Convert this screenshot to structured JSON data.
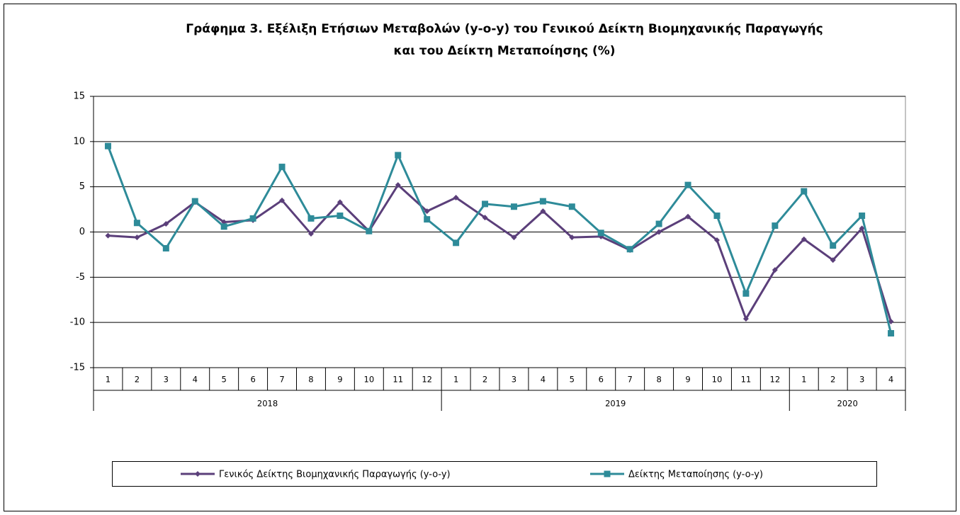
{
  "chart_data": {
    "type": "line",
    "title": [
      "Γράφημα 3. Εξέλιξη Ετήσιων Μεταβολών (y-o-y) του Γενικού Δείκτη Βιομηχανικής Παραγωγής",
      "και του Δείκτη Μεταποίησης (%)"
    ],
    "category_groups": [
      {
        "name": "2018",
        "categories": [
          "1",
          "2",
          "3",
          "4",
          "5",
          "6",
          "7",
          "8",
          "9",
          "10",
          "11",
          "12"
        ]
      },
      {
        "name": "2019",
        "categories": [
          "1",
          "2",
          "3",
          "4",
          "5",
          "6",
          "7",
          "8",
          "9",
          "10",
          "11",
          "12"
        ]
      },
      {
        "name": "2020",
        "categories": [
          "1",
          "2",
          "3",
          "4"
        ]
      }
    ],
    "series": [
      {
        "name": "Γενικός Δείκτης Βιομηχανικής Παραγωγής (y-o-y)",
        "color": "#5b3f7a",
        "marker": "diamond",
        "values": [
          -0.4,
          -0.6,
          0.9,
          3.3,
          1.1,
          1.3,
          3.5,
          -0.2,
          3.3,
          0.1,
          5.2,
          2.3,
          3.8,
          1.6,
          -0.6,
          2.3,
          -0.6,
          -0.5,
          -2.0,
          0.0,
          1.7,
          -0.9,
          -9.6,
          -4.2,
          -0.8,
          -3.1,
          0.4,
          -9.9
        ]
      },
      {
        "name": "Δείκτης Μεταποίησης (y-o-y)",
        "color": "#2e8b99",
        "marker": "square",
        "values": [
          9.5,
          1.0,
          -1.8,
          3.4,
          0.6,
          1.5,
          7.2,
          1.5,
          1.8,
          0.1,
          8.5,
          1.4,
          -1.2,
          3.1,
          2.8,
          3.4,
          2.8,
          -0.1,
          -1.9,
          0.9,
          5.2,
          1.8,
          -6.8,
          0.7,
          4.5,
          -1.5,
          1.8,
          -11.2
        ]
      }
    ],
    "ylim": [
      -15,
      15
    ],
    "yticks": [
      -15,
      -10,
      -5,
      0,
      5,
      10,
      15
    ],
    "grid": true,
    "legend": "bottom"
  }
}
